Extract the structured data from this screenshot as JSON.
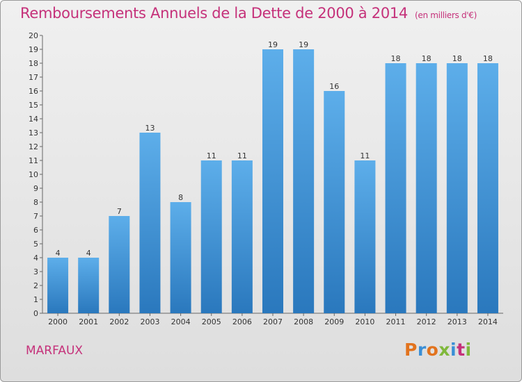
{
  "header": {
    "title": "Remboursements Annuels de la Dette de 2000 à 2014",
    "unit": "(en milliers d'€)"
  },
  "footer": {
    "commune": "MARFAUX",
    "brand": "Proxiti",
    "brand_colors": [
      "#e2731e",
      "#3a8fd6",
      "#e2731e",
      "#7fb83b",
      "#3a8fd6",
      "#c5317a",
      "#7fb83b"
    ]
  },
  "colors": {
    "bar_top": "#5daeea",
    "bar_bottom": "#2a78bd",
    "text": "#c5317a"
  },
  "chart_data": {
    "type": "bar",
    "title": "Remboursements Annuels de la Dette de 2000 à 2014",
    "unit": "(en milliers d'€)",
    "categories": [
      "2000",
      "2001",
      "2002",
      "2003",
      "2004",
      "2005",
      "2006",
      "2007",
      "2008",
      "2009",
      "2010",
      "2011",
      "2012",
      "2013",
      "2014"
    ],
    "values": [
      4,
      4,
      7,
      13,
      8,
      11,
      11,
      19,
      19,
      16,
      11,
      18,
      18,
      18,
      18
    ],
    "data_labels": [
      "4",
      "4",
      "7",
      "13",
      "8",
      "11",
      "11",
      "19",
      "19",
      "16",
      "11",
      "18",
      "18",
      "18",
      "18"
    ],
    "ylim": [
      0,
      20
    ],
    "yticks": [
      "0",
      "1",
      "2",
      "3",
      "4",
      "5",
      "6",
      "7",
      "8",
      "9",
      "10",
      "11",
      "12",
      "13",
      "14",
      "15",
      "16",
      "17",
      "18",
      "19",
      "20"
    ],
    "grid": false,
    "legend": "none"
  }
}
